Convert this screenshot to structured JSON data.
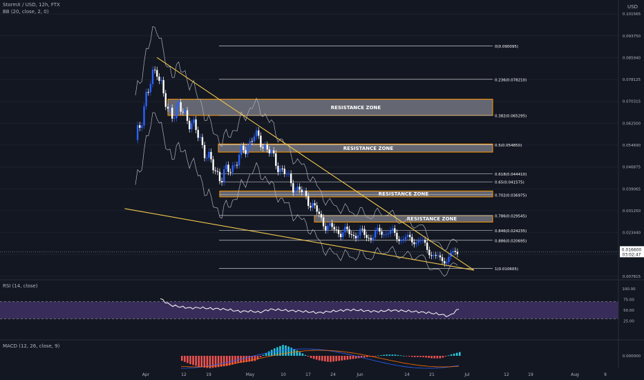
{
  "header": {
    "symbol_line": "StormX / USD, 12h, FTX",
    "bb_line": "BB (20, close, 2, 0)",
    "rsi_line": "RSI (14, close)",
    "macd_line": "MACD (12, 26, close, 9)",
    "currency": "USD"
  },
  "price_axis": {
    "ticks": [
      "0.101565",
      "0.093750",
      "0.085940",
      "0.078125",
      "0.070315",
      "0.062500",
      "0.054690",
      "0.046875",
      "0.039065",
      "0.031250",
      "0.023440",
      "0.015625",
      "0.007815"
    ],
    "current_price": "0.016600",
    "countdown": "03:02:47"
  },
  "rsi_axis": {
    "ticks": [
      "100.00",
      "75.00",
      "50.00",
      "25.00"
    ]
  },
  "macd_axis": {
    "ticks": [
      "0.000000"
    ]
  },
  "time_axis": {
    "ticks": [
      "Apr",
      "12",
      "19",
      "May",
      "10",
      "17",
      "24",
      "Jun",
      "14",
      "21",
      "Jul",
      "12",
      "19",
      "Aug",
      "9"
    ]
  },
  "fib_levels": [
    {
      "ratio": "0",
      "price": "0.090095",
      "label": "0(0.090095)"
    },
    {
      "ratio": "0.236",
      "price": "0.078210",
      "label": "0.236(0.078210)"
    },
    {
      "ratio": "0.382",
      "price": "0.065295",
      "label": "0.382(0.065295)"
    },
    {
      "ratio": "0.5",
      "price": "0.054850",
      "label": "0.5(0.054850)"
    },
    {
      "ratio": "0.618",
      "price": "0.044410",
      "label": "0.618(0.044410)"
    },
    {
      "ratio": "0.65",
      "price": "0.041575",
      "label": "0.65(0.041575)"
    },
    {
      "ratio": "0.702",
      "price": "0.036975",
      "label": "0.702(0.036975)"
    },
    {
      "ratio": "0.786",
      "price": "0.029545",
      "label": "0.786(0.029545)"
    },
    {
      "ratio": "0.846",
      "price": "0.024235",
      "label": "0.846(0.024235)"
    },
    {
      "ratio": "0.886",
      "price": "0.020695",
      "label": "0.886(0.020695)"
    },
    {
      "ratio": "1",
      "price": "0.010605",
      "label": "1(0.010605)"
    }
  ],
  "zones": [
    {
      "label": "RESISTANCE ZONE",
      "top": 0.0711,
      "bottom": 0.0653
    },
    {
      "label": "RESISTANCE ZONE",
      "top": 0.0551,
      "bottom": 0.0522
    },
    {
      "label": "RESISTANCE ZONE",
      "top": 0.0383,
      "bottom": 0.0362
    },
    {
      "label": "RESISTANCE ZONE",
      "top": 0.0295,
      "bottom": 0.0272
    }
  ],
  "chart_data": {
    "type": "candlestick",
    "title": "StormX / USD, 12h, FTX",
    "ylim": [
      0.0078,
      0.1016
    ],
    "dates": [
      "Mar 30",
      "Apr 2",
      "Apr 5",
      "Apr 8",
      "Apr 11",
      "Apr 14",
      "Apr 17",
      "Apr 20",
      "Apr 23",
      "Apr 26",
      "Apr 29",
      "May 2",
      "May 5",
      "May 8",
      "May 11",
      "May 14",
      "May 17",
      "May 20",
      "May 23",
      "May 26",
      "May 29",
      "Jun 1",
      "Jun 4",
      "Jun 7",
      "Jun 10",
      "Jun 13",
      "Jun 16",
      "Jun 19",
      "Jun 22",
      "Jun 25",
      "Jun 28"
    ],
    "close": [
      0.055,
      0.072,
      0.083,
      0.066,
      0.068,
      0.064,
      0.057,
      0.048,
      0.043,
      0.047,
      0.052,
      0.058,
      0.055,
      0.049,
      0.044,
      0.039,
      0.036,
      0.03,
      0.025,
      0.024,
      0.023,
      0.023,
      0.022,
      0.024,
      0.023,
      0.021,
      0.021,
      0.019,
      0.014,
      0.014,
      0.0166
    ],
    "trendlines": [
      {
        "name": "upper",
        "from": [
          "Apr 5",
          0.086
        ],
        "to": [
          "Jun 28",
          0.01
        ]
      },
      {
        "name": "lower",
        "from": [
          "Apr 24",
          0.032
        ],
        "to": [
          "Jun 28",
          0.01
        ]
      }
    ],
    "rsi": {
      "upper_band": 70,
      "lower_band": 30,
      "range": [
        0,
        100
      ],
      "values": [
        77,
        62,
        58,
        55,
        56,
        54,
        53,
        51,
        47,
        48,
        45,
        52,
        51,
        49,
        48,
        46,
        44,
        47,
        49,
        51,
        50,
        48,
        47,
        50,
        49,
        48,
        46,
        44,
        41,
        36,
        53
      ]
    },
    "macd": {
      "histogram": [
        -0.0004,
        -0.0007,
        -0.0009,
        -0.001,
        -0.0009,
        -0.0008,
        -0.0006,
        -0.0005,
        -0.0004,
        0.0002,
        0.0006,
        0.0009,
        0.0006,
        0.0002,
        -0.0002,
        -0.0004,
        -0.0005,
        -0.0004,
        -0.0003,
        -0.0002,
        -0.0001,
        0.0,
        0.0001,
        0.0001,
        0.0,
        -0.0001,
        -0.0001,
        -0.0002,
        -0.0002,
        0.0001,
        0.0003
      ]
    }
  },
  "colors": {
    "up": "#2962ff",
    "down": "#ffffff",
    "trend": "#f2c94c",
    "zone_border": "#ff9800",
    "rsi": "#ffffff",
    "rsi_band": "#7e57c2",
    "macd_up": "#26c6da",
    "macd_down": "#ef5350"
  }
}
